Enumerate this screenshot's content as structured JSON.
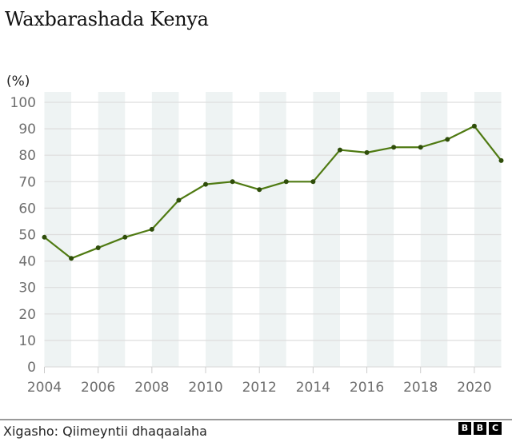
{
  "header": {
    "title": "Waxbarashada Kenya",
    "unit_label": "(%)"
  },
  "footer": {
    "source": "Xigasho: Qiimeyntii dhaqaalaha",
    "logo_letters": [
      "B",
      "B",
      "C"
    ]
  },
  "colors": {
    "line": "#4f7a12",
    "marker": "#2f4d0a",
    "band": "#eef3f3",
    "grid": "#dddddd",
    "tick_text": "#6e6e6e"
  },
  "chart_data": {
    "type": "line",
    "title": "Waxbarashada Kenya",
    "xlabel": "",
    "ylabel": "(%)",
    "x": [
      2004,
      2005,
      2006,
      2007,
      2008,
      2009,
      2010,
      2011,
      2012,
      2013,
      2014,
      2015,
      2016,
      2017,
      2018,
      2019,
      2020,
      2021
    ],
    "series": [
      {
        "name": "Waxbarashada Kenya",
        "values": [
          49,
          41,
          45,
          49,
          52,
          63,
          69,
          70,
          67,
          70,
          70,
          82,
          81,
          83,
          83,
          86,
          91,
          78
        ]
      }
    ],
    "ylim": [
      0,
      100
    ],
    "yticks": [
      0,
      10,
      20,
      30,
      40,
      50,
      60,
      70,
      80,
      90,
      100
    ],
    "xticks": [
      2004,
      2006,
      2008,
      2010,
      2012,
      2014,
      2016,
      2018,
      2020
    ],
    "grid": true,
    "alternating_year_bands": true,
    "legend": "none",
    "source": "Xigasho: Qiimeyntii dhaqaalaha"
  }
}
